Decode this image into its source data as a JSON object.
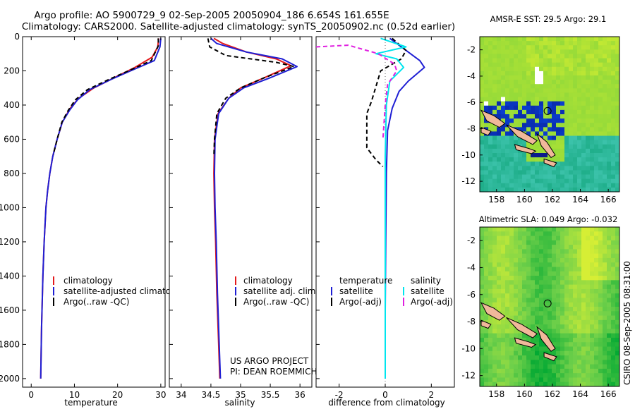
{
  "figure": {
    "title_line1": "Argo profile: AO 5900729_9 02-Sep-2005 20050904_186 6.654S 161.655E",
    "title_line2": "Climatology: CARS2000. Satellite-adjusted climatology: synTS_20050902.nc (0.52d earlier)",
    "credit_line1": "US ARGO PROJECT",
    "credit_line2": "PI: DEAN ROEMMICH",
    "side_stamp": "CSIRO 08-Sep-2005 08:31:00"
  },
  "chart_data": [
    {
      "type": "line",
      "id": "temperature",
      "xlabel": "temperature",
      "xlim": [
        -2,
        31
      ],
      "ylim": [
        2050,
        0
      ],
      "xticks": [
        0,
        10,
        20,
        30
      ],
      "yticks": [
        0,
        200,
        400,
        600,
        800,
        1000,
        1200,
        1400,
        1600,
        1800,
        2000
      ],
      "legend": [
        "climatology",
        "satellite-adjusted climatology",
        "Argo(..raw -QC)"
      ],
      "series": [
        {
          "name": "climatology",
          "color": "#e31a1c",
          "x": [
            29.5,
            29.3,
            28.0,
            24.0,
            20.0,
            14.5,
            11.0,
            9.0,
            7.2,
            6.0,
            5.0,
            4.3,
            3.8,
            3.4,
            3.0,
            2.7,
            2.4,
            2.2
          ],
          "y": [
            10,
            60,
            120,
            180,
            230,
            300,
            360,
            420,
            500,
            600,
            700,
            800,
            900,
            1000,
            1200,
            1400,
            1700,
            2000
          ]
        },
        {
          "name": "satellite-adjusted climatology",
          "color": "#1f1fd4",
          "x": [
            30.0,
            29.8,
            28.5,
            23.0,
            18.5,
            13.5,
            10.7,
            8.9,
            7.2,
            6.0,
            5.0,
            4.3,
            3.8,
            3.4,
            3.0,
            2.7,
            2.4,
            2.2
          ],
          "y": [
            10,
            60,
            140,
            200,
            250,
            310,
            370,
            430,
            500,
            600,
            700,
            800,
            900,
            1000,
            1200,
            1400,
            1700,
            2000
          ]
        },
        {
          "name": "Argo(..raw -QC)",
          "color": "#000000",
          "dash": "6,4",
          "x": [
            29.4,
            29.5,
            27.8,
            22.5,
            18.0,
            13.0,
            10.2,
            8.6,
            7.1,
            6.0,
            5.1
          ],
          "y": [
            10,
            50,
            140,
            200,
            250,
            310,
            370,
            430,
            500,
            600,
            690
          ]
        }
      ]
    },
    {
      "type": "line",
      "id": "salinity",
      "xlabel": "salinity",
      "xlim": [
        33.8,
        36.2
      ],
      "ylim": [
        2050,
        0
      ],
      "xticks": [
        34,
        34.5,
        35,
        35.5,
        36
      ],
      "legend": [
        "climatology",
        "satellite adj. clim.",
        "Argo(..raw -QC)"
      ],
      "series": [
        {
          "name": "climatology",
          "color": "#e31a1c",
          "x": [
            34.55,
            34.7,
            35.1,
            35.6,
            35.85,
            35.4,
            35.0,
            34.8,
            34.62,
            34.56,
            34.55,
            34.56,
            34.58,
            34.6,
            34.63,
            34.65
          ],
          "y": [
            10,
            40,
            90,
            130,
            170,
            240,
            300,
            360,
            450,
            600,
            800,
            1000,
            1200,
            1500,
            1800,
            2000
          ]
        },
        {
          "name": "satellite adj. clim.",
          "color": "#1f1fd4",
          "x": [
            34.5,
            34.6,
            35.1,
            35.7,
            35.95,
            35.5,
            35.05,
            34.8,
            34.63,
            34.57,
            34.56,
            34.57,
            34.59,
            34.61,
            34.64,
            34.66
          ],
          "y": [
            10,
            40,
            90,
            130,
            175,
            240,
            300,
            360,
            450,
            600,
            800,
            1000,
            1200,
            1500,
            1800,
            2000
          ]
        },
        {
          "name": "Argo(..raw -QC)",
          "color": "#000000",
          "dash": "6,4",
          "x": [
            34.45,
            34.48,
            34.75,
            35.6,
            35.9,
            35.4,
            35.0,
            34.75,
            34.6,
            34.56,
            34.55
          ],
          "y": [
            10,
            60,
            110,
            150,
            175,
            240,
            300,
            360,
            450,
            600,
            700
          ]
        }
      ]
    },
    {
      "type": "line",
      "id": "difference",
      "xlabel": "difference from climatology",
      "xlim": [
        -3,
        3
      ],
      "ylim": [
        2050,
        0
      ],
      "xticks": [
        -2,
        0,
        2
      ],
      "legend_headers": [
        "temperature",
        "salinity"
      ],
      "legend": [
        "satellite",
        "Argo(-adj)",
        "satellite",
        "Argo(-adj)"
      ],
      "series": [
        {
          "name": "temperature satellite",
          "color": "#1f1fd4",
          "x": [
            0.2,
            0.9,
            1.5,
            1.7,
            1.0,
            0.6,
            0.3,
            0.1,
            0.05,
            0.02,
            0.0,
            0.0
          ],
          "y": [
            10,
            80,
            140,
            180,
            260,
            320,
            420,
            550,
            800,
            1200,
            1600,
            2000
          ]
        },
        {
          "name": "temperature Argo(-adj)",
          "color": "#000000",
          "dash": "6,4",
          "x": [
            0.3,
            0.9,
            0.7,
            -0.2,
            -0.6,
            -0.8,
            -0.8,
            -0.4,
            -0.1
          ],
          "y": [
            10,
            80,
            130,
            200,
            380,
            450,
            650,
            720,
            760
          ]
        },
        {
          "name": "salinity satellite",
          "color": "#00e5ee",
          "x": [
            -0.2,
            0.9,
            -0.4,
            0.5,
            0.8,
            0.2,
            0.05,
            0.0,
            0.0,
            0.0,
            0.0
          ],
          "y": [
            10,
            60,
            100,
            130,
            180,
            260,
            400,
            700,
            1100,
            1600,
            2000
          ]
        },
        {
          "name": "salinity Argo(-adj)",
          "color": "#e020e0",
          "dash": "6,4",
          "x": [
            -3.0,
            -1.6,
            -0.3,
            0.4,
            0.5,
            0.1,
            0.0,
            -0.05,
            -0.1
          ],
          "y": [
            60,
            50,
            100,
            160,
            200,
            280,
            400,
            500,
            600
          ]
        }
      ]
    }
  ],
  "maps": [
    {
      "id": "sst",
      "title": "AMSR-E SST: 29.5 Argo: 29.1",
      "xlim": [
        156.8,
        166.8
      ],
      "ylim": [
        -12.8,
        -1.0
      ],
      "xticks": [
        158,
        160,
        162,
        164,
        166
      ],
      "yticks": [
        -2,
        -4,
        -6,
        -8,
        -10,
        -12
      ],
      "profile_location": {
        "lon": 161.655,
        "lat": -6.654
      }
    },
    {
      "id": "sla",
      "title": "Altimetric SLA: 0.049 Argo: -0.032",
      "xlim": [
        156.8,
        166.8
      ],
      "ylim": [
        -12.8,
        -1.0
      ],
      "xticks": [
        158,
        160,
        162,
        164,
        166
      ],
      "yticks": [
        -2,
        -4,
        -6,
        -8,
        -10,
        -12
      ],
      "profile_location": {
        "lon": 161.655,
        "lat": -6.654
      }
    }
  ],
  "colors": {
    "land": "#f0b89a",
    "sst_field": "#8ed83a",
    "sst_warm": "#d8ef30",
    "sst_cool": "#1fae8a",
    "sst_cold": "#0b1a8c",
    "sla_field": "#6fd04a",
    "sla_high": "#d6ee35",
    "sla_low": "#2db83c"
  }
}
